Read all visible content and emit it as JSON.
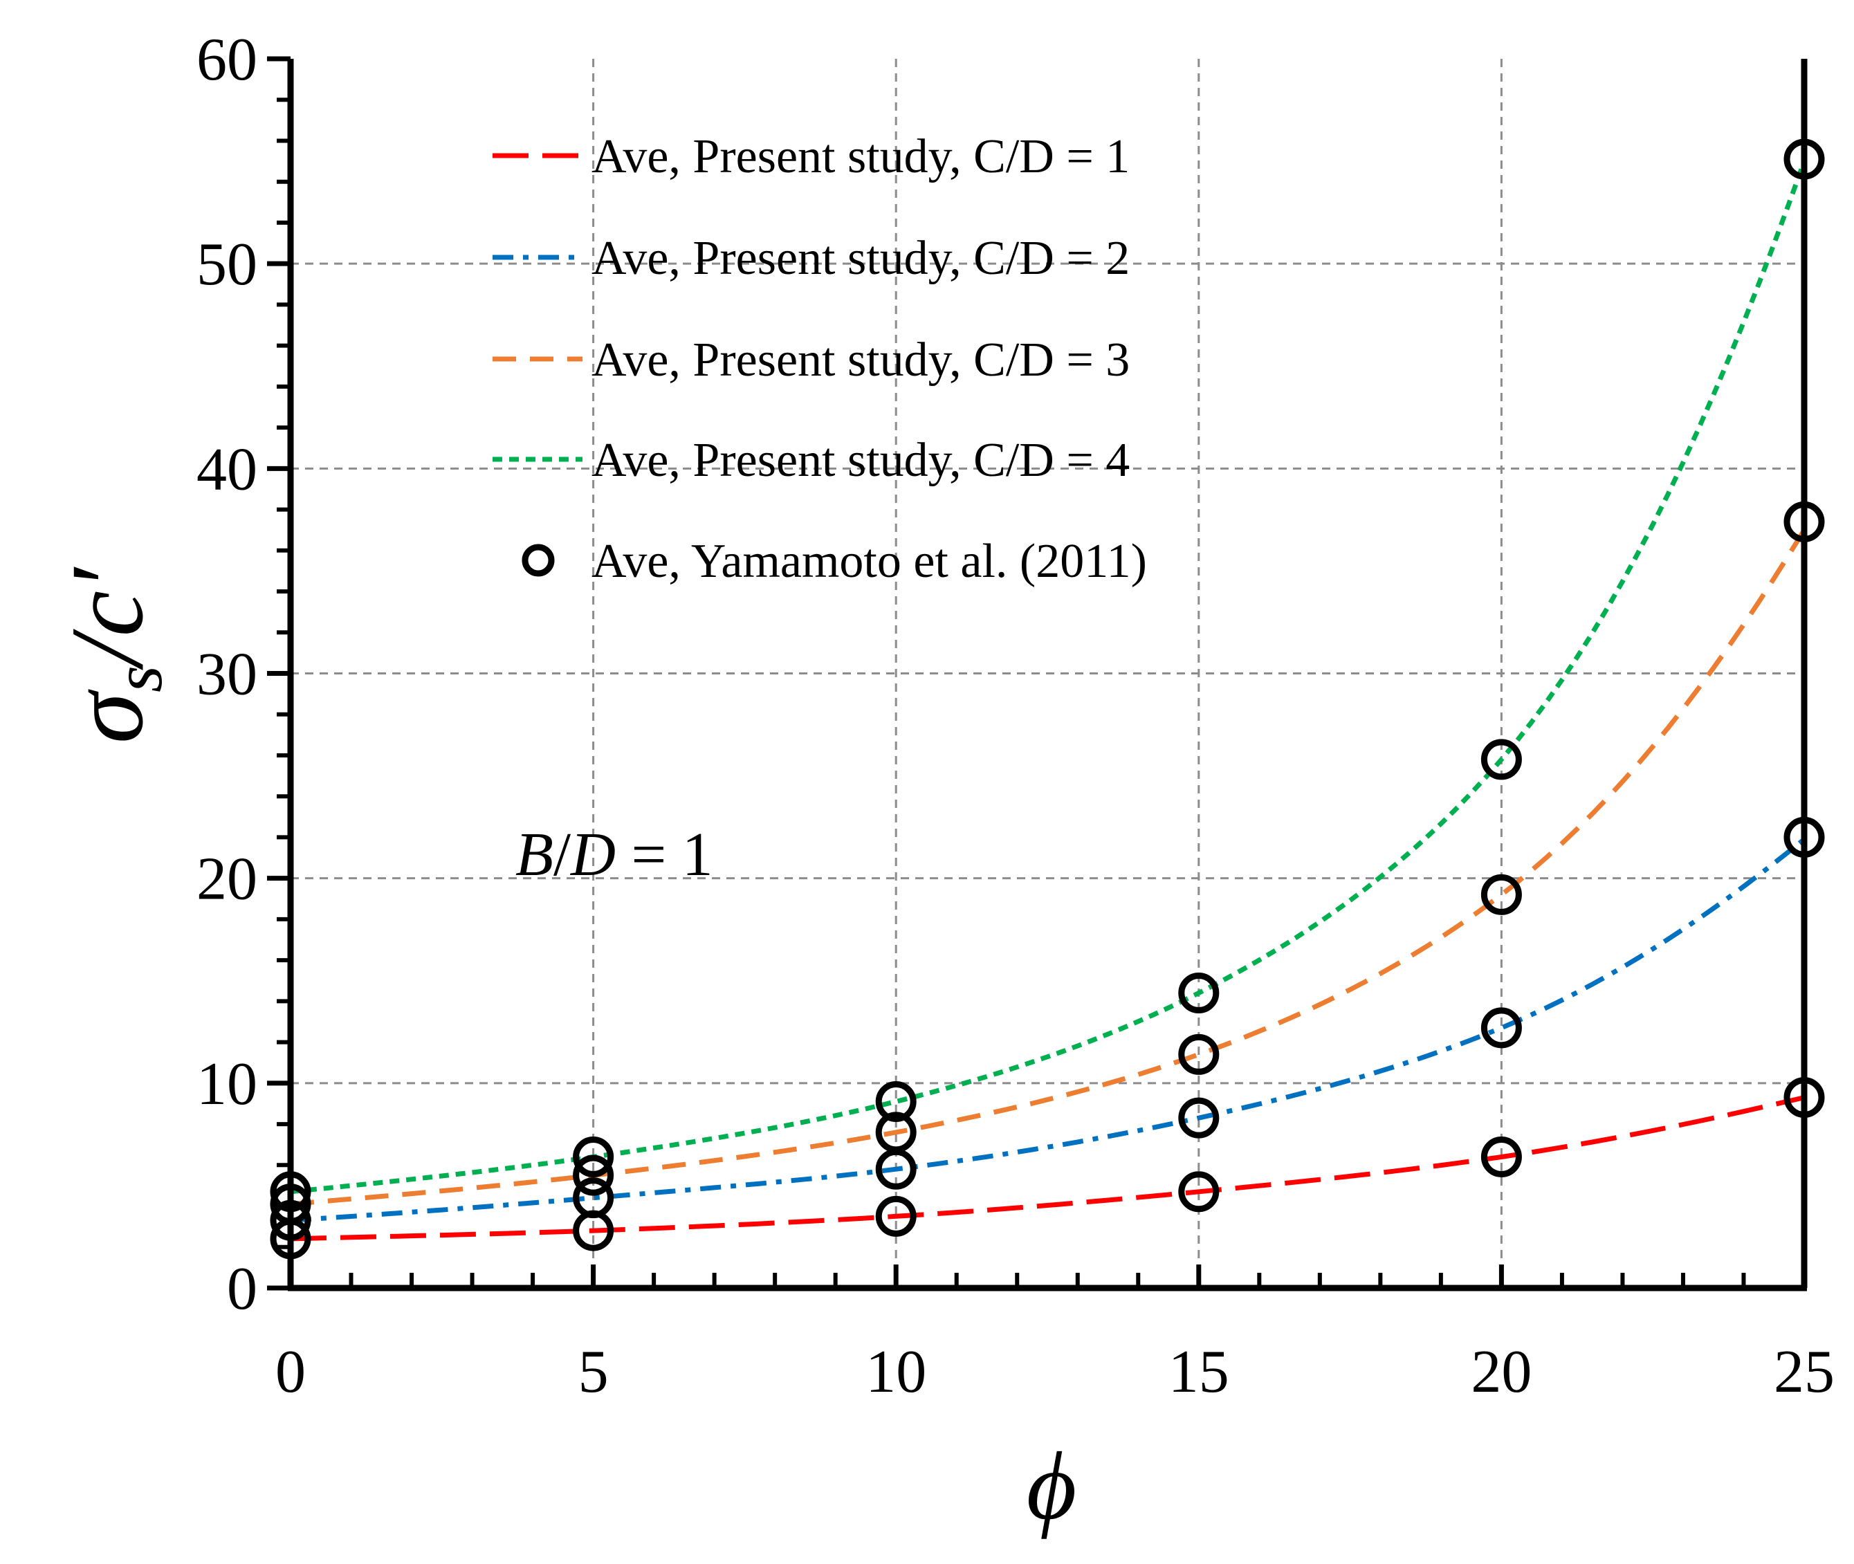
{
  "chart_data": {
    "type": "line",
    "xlabel": "ϕ",
    "ylabel": {
      "main": "σ",
      "sub": "s",
      "rest": "/c′"
    },
    "xlim": [
      0,
      25
    ],
    "ylim": [
      0,
      60
    ],
    "x_ticks": [
      "0",
      "5",
      "10",
      "15",
      "20",
      "25"
    ],
    "y_ticks": [
      "0",
      "10",
      "20",
      "30",
      "40",
      "50",
      "60"
    ],
    "grid": true,
    "legend_position": "top-left",
    "annotation": {
      "text_parts": [
        "B",
        "/",
        "D",
        " = 1"
      ]
    },
    "series": [
      {
        "name": "Ave, Present study, C/D = 1",
        "kind": "line",
        "style": "long-dash",
        "color": "#ff0000",
        "x": [
          0,
          5,
          10,
          15,
          20,
          25
        ],
        "values": [
          2.4,
          2.8,
          3.5,
          4.7,
          6.4,
          9.3
        ]
      },
      {
        "name": "Ave, Present study, C/D = 2",
        "kind": "line",
        "style": "dash-dot",
        "color": "#0070c0",
        "x": [
          0,
          5,
          10,
          15,
          20,
          25
        ],
        "values": [
          3.3,
          4.4,
          5.8,
          8.3,
          12.7,
          21.9
        ]
      },
      {
        "name": "Ave, Present study, C/D = 3",
        "kind": "line",
        "style": "dash",
        "color": "#ed7d31",
        "x": [
          0,
          5,
          10,
          15,
          20,
          25
        ],
        "values": [
          4.1,
          5.5,
          7.6,
          11.4,
          19.2,
          37.0
        ]
      },
      {
        "name": "Ave, Present study, C/D = 4",
        "kind": "line",
        "style": "short-dash",
        "color": "#00b050",
        "x": [
          0,
          5,
          10,
          15,
          20,
          25
        ],
        "values": [
          4.7,
          6.4,
          9.1,
          14.4,
          25.8,
          55.0
        ]
      },
      {
        "name": "Ave, Yamamoto et al. (2011)",
        "kind": "markers",
        "marker": "open-circle",
        "color": "#000000",
        "points": [
          [
            0,
            2.4
          ],
          [
            0,
            3.3
          ],
          [
            0,
            4.1
          ],
          [
            0,
            4.7
          ],
          [
            5,
            2.8
          ],
          [
            5,
            4.4
          ],
          [
            5,
            5.5
          ],
          [
            5,
            6.4
          ],
          [
            10,
            3.5
          ],
          [
            10,
            5.8
          ],
          [
            10,
            7.6
          ],
          [
            10,
            9.1
          ],
          [
            15,
            4.7
          ],
          [
            15,
            8.3
          ],
          [
            15,
            11.4
          ],
          [
            15,
            14.4
          ],
          [
            20,
            6.4
          ],
          [
            20,
            12.7
          ],
          [
            20,
            19.2
          ],
          [
            20,
            25.8
          ],
          [
            25,
            9.3
          ],
          [
            25,
            22.0
          ],
          [
            25,
            37.4
          ],
          [
            25,
            55.1
          ]
        ]
      }
    ]
  }
}
